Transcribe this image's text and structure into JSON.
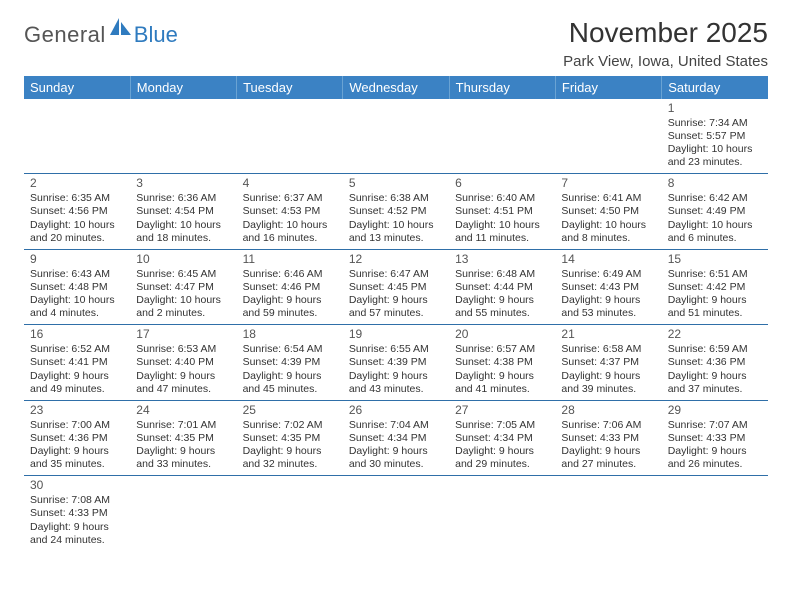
{
  "logo": {
    "left": "General",
    "right": "Blue"
  },
  "title": "November 2025",
  "location": "Park View, Iowa, United States",
  "colors": {
    "header_bg": "#3b82c4",
    "header_text": "#ffffff",
    "rule": "#2f6fa8",
    "logo_gray": "#555555",
    "logo_blue": "#2f7bbf"
  },
  "weekdays": [
    "Sunday",
    "Monday",
    "Tuesday",
    "Wednesday",
    "Thursday",
    "Friday",
    "Saturday"
  ],
  "weeks": [
    [
      null,
      null,
      null,
      null,
      null,
      null,
      {
        "n": "1",
        "sr": "Sunrise: 7:34 AM",
        "ss": "Sunset: 5:57 PM",
        "d1": "Daylight: 10 hours",
        "d2": "and 23 minutes."
      }
    ],
    [
      {
        "n": "2",
        "sr": "Sunrise: 6:35 AM",
        "ss": "Sunset: 4:56 PM",
        "d1": "Daylight: 10 hours",
        "d2": "and 20 minutes."
      },
      {
        "n": "3",
        "sr": "Sunrise: 6:36 AM",
        "ss": "Sunset: 4:54 PM",
        "d1": "Daylight: 10 hours",
        "d2": "and 18 minutes."
      },
      {
        "n": "4",
        "sr": "Sunrise: 6:37 AM",
        "ss": "Sunset: 4:53 PM",
        "d1": "Daylight: 10 hours",
        "d2": "and 16 minutes."
      },
      {
        "n": "5",
        "sr": "Sunrise: 6:38 AM",
        "ss": "Sunset: 4:52 PM",
        "d1": "Daylight: 10 hours",
        "d2": "and 13 minutes."
      },
      {
        "n": "6",
        "sr": "Sunrise: 6:40 AM",
        "ss": "Sunset: 4:51 PM",
        "d1": "Daylight: 10 hours",
        "d2": "and 11 minutes."
      },
      {
        "n": "7",
        "sr": "Sunrise: 6:41 AM",
        "ss": "Sunset: 4:50 PM",
        "d1": "Daylight: 10 hours",
        "d2": "and 8 minutes."
      },
      {
        "n": "8",
        "sr": "Sunrise: 6:42 AM",
        "ss": "Sunset: 4:49 PM",
        "d1": "Daylight: 10 hours",
        "d2": "and 6 minutes."
      }
    ],
    [
      {
        "n": "9",
        "sr": "Sunrise: 6:43 AM",
        "ss": "Sunset: 4:48 PM",
        "d1": "Daylight: 10 hours",
        "d2": "and 4 minutes."
      },
      {
        "n": "10",
        "sr": "Sunrise: 6:45 AM",
        "ss": "Sunset: 4:47 PM",
        "d1": "Daylight: 10 hours",
        "d2": "and 2 minutes."
      },
      {
        "n": "11",
        "sr": "Sunrise: 6:46 AM",
        "ss": "Sunset: 4:46 PM",
        "d1": "Daylight: 9 hours",
        "d2": "and 59 minutes."
      },
      {
        "n": "12",
        "sr": "Sunrise: 6:47 AM",
        "ss": "Sunset: 4:45 PM",
        "d1": "Daylight: 9 hours",
        "d2": "and 57 minutes."
      },
      {
        "n": "13",
        "sr": "Sunrise: 6:48 AM",
        "ss": "Sunset: 4:44 PM",
        "d1": "Daylight: 9 hours",
        "d2": "and 55 minutes."
      },
      {
        "n": "14",
        "sr": "Sunrise: 6:49 AM",
        "ss": "Sunset: 4:43 PM",
        "d1": "Daylight: 9 hours",
        "d2": "and 53 minutes."
      },
      {
        "n": "15",
        "sr": "Sunrise: 6:51 AM",
        "ss": "Sunset: 4:42 PM",
        "d1": "Daylight: 9 hours",
        "d2": "and 51 minutes."
      }
    ],
    [
      {
        "n": "16",
        "sr": "Sunrise: 6:52 AM",
        "ss": "Sunset: 4:41 PM",
        "d1": "Daylight: 9 hours",
        "d2": "and 49 minutes."
      },
      {
        "n": "17",
        "sr": "Sunrise: 6:53 AM",
        "ss": "Sunset: 4:40 PM",
        "d1": "Daylight: 9 hours",
        "d2": "and 47 minutes."
      },
      {
        "n": "18",
        "sr": "Sunrise: 6:54 AM",
        "ss": "Sunset: 4:39 PM",
        "d1": "Daylight: 9 hours",
        "d2": "and 45 minutes."
      },
      {
        "n": "19",
        "sr": "Sunrise: 6:55 AM",
        "ss": "Sunset: 4:39 PM",
        "d1": "Daylight: 9 hours",
        "d2": "and 43 minutes."
      },
      {
        "n": "20",
        "sr": "Sunrise: 6:57 AM",
        "ss": "Sunset: 4:38 PM",
        "d1": "Daylight: 9 hours",
        "d2": "and 41 minutes."
      },
      {
        "n": "21",
        "sr": "Sunrise: 6:58 AM",
        "ss": "Sunset: 4:37 PM",
        "d1": "Daylight: 9 hours",
        "d2": "and 39 minutes."
      },
      {
        "n": "22",
        "sr": "Sunrise: 6:59 AM",
        "ss": "Sunset: 4:36 PM",
        "d1": "Daylight: 9 hours",
        "d2": "and 37 minutes."
      }
    ],
    [
      {
        "n": "23",
        "sr": "Sunrise: 7:00 AM",
        "ss": "Sunset: 4:36 PM",
        "d1": "Daylight: 9 hours",
        "d2": "and 35 minutes."
      },
      {
        "n": "24",
        "sr": "Sunrise: 7:01 AM",
        "ss": "Sunset: 4:35 PM",
        "d1": "Daylight: 9 hours",
        "d2": "and 33 minutes."
      },
      {
        "n": "25",
        "sr": "Sunrise: 7:02 AM",
        "ss": "Sunset: 4:35 PM",
        "d1": "Daylight: 9 hours",
        "d2": "and 32 minutes."
      },
      {
        "n": "26",
        "sr": "Sunrise: 7:04 AM",
        "ss": "Sunset: 4:34 PM",
        "d1": "Daylight: 9 hours",
        "d2": "and 30 minutes."
      },
      {
        "n": "27",
        "sr": "Sunrise: 7:05 AM",
        "ss": "Sunset: 4:34 PM",
        "d1": "Daylight: 9 hours",
        "d2": "and 29 minutes."
      },
      {
        "n": "28",
        "sr": "Sunrise: 7:06 AM",
        "ss": "Sunset: 4:33 PM",
        "d1": "Daylight: 9 hours",
        "d2": "and 27 minutes."
      },
      {
        "n": "29",
        "sr": "Sunrise: 7:07 AM",
        "ss": "Sunset: 4:33 PM",
        "d1": "Daylight: 9 hours",
        "d2": "and 26 minutes."
      }
    ],
    [
      {
        "n": "30",
        "sr": "Sunrise: 7:08 AM",
        "ss": "Sunset: 4:33 PM",
        "d1": "Daylight: 9 hours",
        "d2": "and 24 minutes."
      },
      null,
      null,
      null,
      null,
      null,
      null
    ]
  ]
}
